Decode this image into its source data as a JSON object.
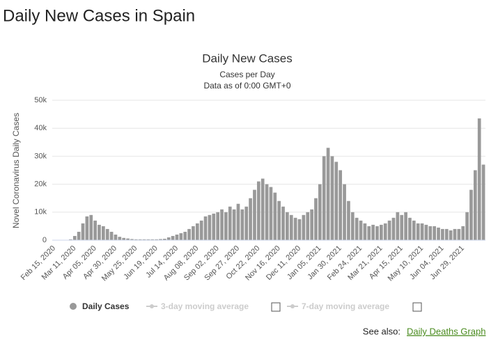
{
  "heading": "Daily New Cases in Spain",
  "chart_data": {
    "type": "bar",
    "title": "Daily New Cases",
    "subtitle": "Cases per Day",
    "subtitle2": "Data as of 0:00 GMT+0",
    "y_label": "Novel Coronavirus Daily Cases",
    "categories": [
      "Feb 15, 2020",
      null,
      null,
      null,
      null,
      "Mar 11, 2020",
      null,
      null,
      null,
      null,
      "Apr 05, 2020",
      null,
      null,
      null,
      null,
      "Apr 30, 2020",
      null,
      null,
      null,
      null,
      "May 25, 2020",
      null,
      null,
      null,
      null,
      "Jun 19, 2020",
      null,
      null,
      null,
      null,
      "Jul 14, 2020",
      null,
      null,
      null,
      null,
      "Aug 08, 2020",
      null,
      null,
      null,
      null,
      "Sep 02, 2020",
      null,
      null,
      null,
      null,
      "Sep 27, 2020",
      null,
      null,
      null,
      null,
      "Oct 22, 2020",
      null,
      null,
      null,
      null,
      "Nov 16, 2020",
      null,
      null,
      null,
      null,
      "Dec 11, 2020",
      null,
      null,
      null,
      null,
      "Jan 05, 2021",
      null,
      null,
      null,
      null,
      "Jan 30, 2021",
      null,
      null,
      null,
      null,
      "Feb 24, 2021",
      null,
      null,
      null,
      null,
      "Mar 21, 2021",
      null,
      null,
      null,
      null,
      "Apr 15, 2021",
      null,
      null,
      null,
      null,
      "May 10, 2021",
      null,
      null,
      null,
      null,
      "Jun 04, 2021",
      null,
      null,
      null,
      null,
      "Jun 29, 2021",
      null,
      null,
      null,
      null,
      null
    ],
    "series": [
      {
        "name": "Daily Cases",
        "color": "#999999",
        "values": [
          0,
          0,
          0,
          100,
          300,
          1500,
          3000,
          6000,
          8500,
          9000,
          7000,
          5500,
          5000,
          4000,
          3000,
          2000,
          1200,
          800,
          600,
          400,
          300,
          300,
          300,
          300,
          300,
          300,
          400,
          500,
          1000,
          1500,
          2000,
          2500,
          3000,
          4000,
          5000,
          6000,
          7000,
          8500,
          9000,
          9500,
          10000,
          11000,
          10000,
          12000,
          11000,
          13000,
          11000,
          12000,
          15000,
          18000,
          21000,
          22000,
          20000,
          19000,
          17000,
          14000,
          12000,
          10000,
          9000,
          8000,
          7500,
          9000,
          10000,
          11000,
          15000,
          20000,
          30000,
          33000,
          30000,
          28000,
          25000,
          20000,
          14000,
          10000,
          8000,
          7000,
          6000,
          5000,
          5500,
          5000,
          5500,
          6000,
          7000,
          8000,
          10000,
          9000,
          10000,
          8000,
          7000,
          6000,
          6000,
          5500,
          5000,
          5000,
          4500,
          4000,
          4000,
          3500,
          4000,
          4000,
          5000,
          10000,
          18000,
          25000,
          43500,
          27000
        ]
      }
    ],
    "other_legend": [
      "3-day moving average",
      "7-day moving average"
    ],
    "ylim": [
      0,
      50000
    ],
    "yticks": [
      0,
      {
        "value": 10000,
        "label": "10k"
      },
      {
        "value": 20000,
        "label": "20k"
      },
      {
        "value": 30000,
        "label": "30k"
      },
      {
        "value": 40000,
        "label": "40k"
      },
      {
        "value": 50000,
        "label": "50k"
      }
    ],
    "grid": true
  },
  "see_also": {
    "label": "See also:",
    "link": "Daily Deaths Graph"
  }
}
